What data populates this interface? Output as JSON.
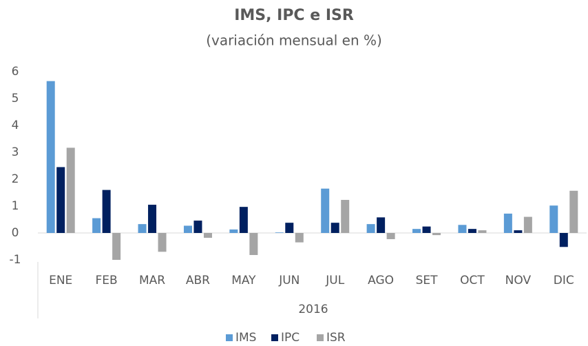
{
  "chart_data": {
    "type": "bar",
    "title": "IMS, IPC e ISR",
    "subtitle": "(variación mensual en %)",
    "xlabel": "2016",
    "categories": [
      "ENE",
      "FEB",
      "MAR",
      "ABR",
      "MAY",
      "JUN",
      "JUL",
      "AGO",
      "SET",
      "OCT",
      "NOV",
      "DIC"
    ],
    "series": [
      {
        "name": "IMS",
        "color": "#5b9bd5",
        "values": [
          5.65,
          0.55,
          0.33,
          0.27,
          0.13,
          0.02,
          1.65,
          0.33,
          0.15,
          0.3,
          0.72,
          1.02
        ]
      },
      {
        "name": "IPC",
        "color": "#002060",
        "values": [
          2.45,
          1.6,
          1.05,
          0.46,
          0.97,
          0.38,
          0.38,
          0.58,
          0.24,
          0.15,
          0.1,
          -0.52
        ]
      },
      {
        "name": "ISR",
        "color": "#a5a5a5",
        "values": [
          3.17,
          -1.0,
          -0.7,
          -0.18,
          -0.82,
          -0.35,
          1.23,
          -0.23,
          -0.08,
          0.1,
          0.6,
          1.57
        ]
      }
    ],
    "ylim": [
      -1,
      6
    ],
    "yticks": [
      -1,
      0,
      1,
      2,
      3,
      4,
      5,
      6
    ],
    "grid": false,
    "legend": "bottom"
  }
}
